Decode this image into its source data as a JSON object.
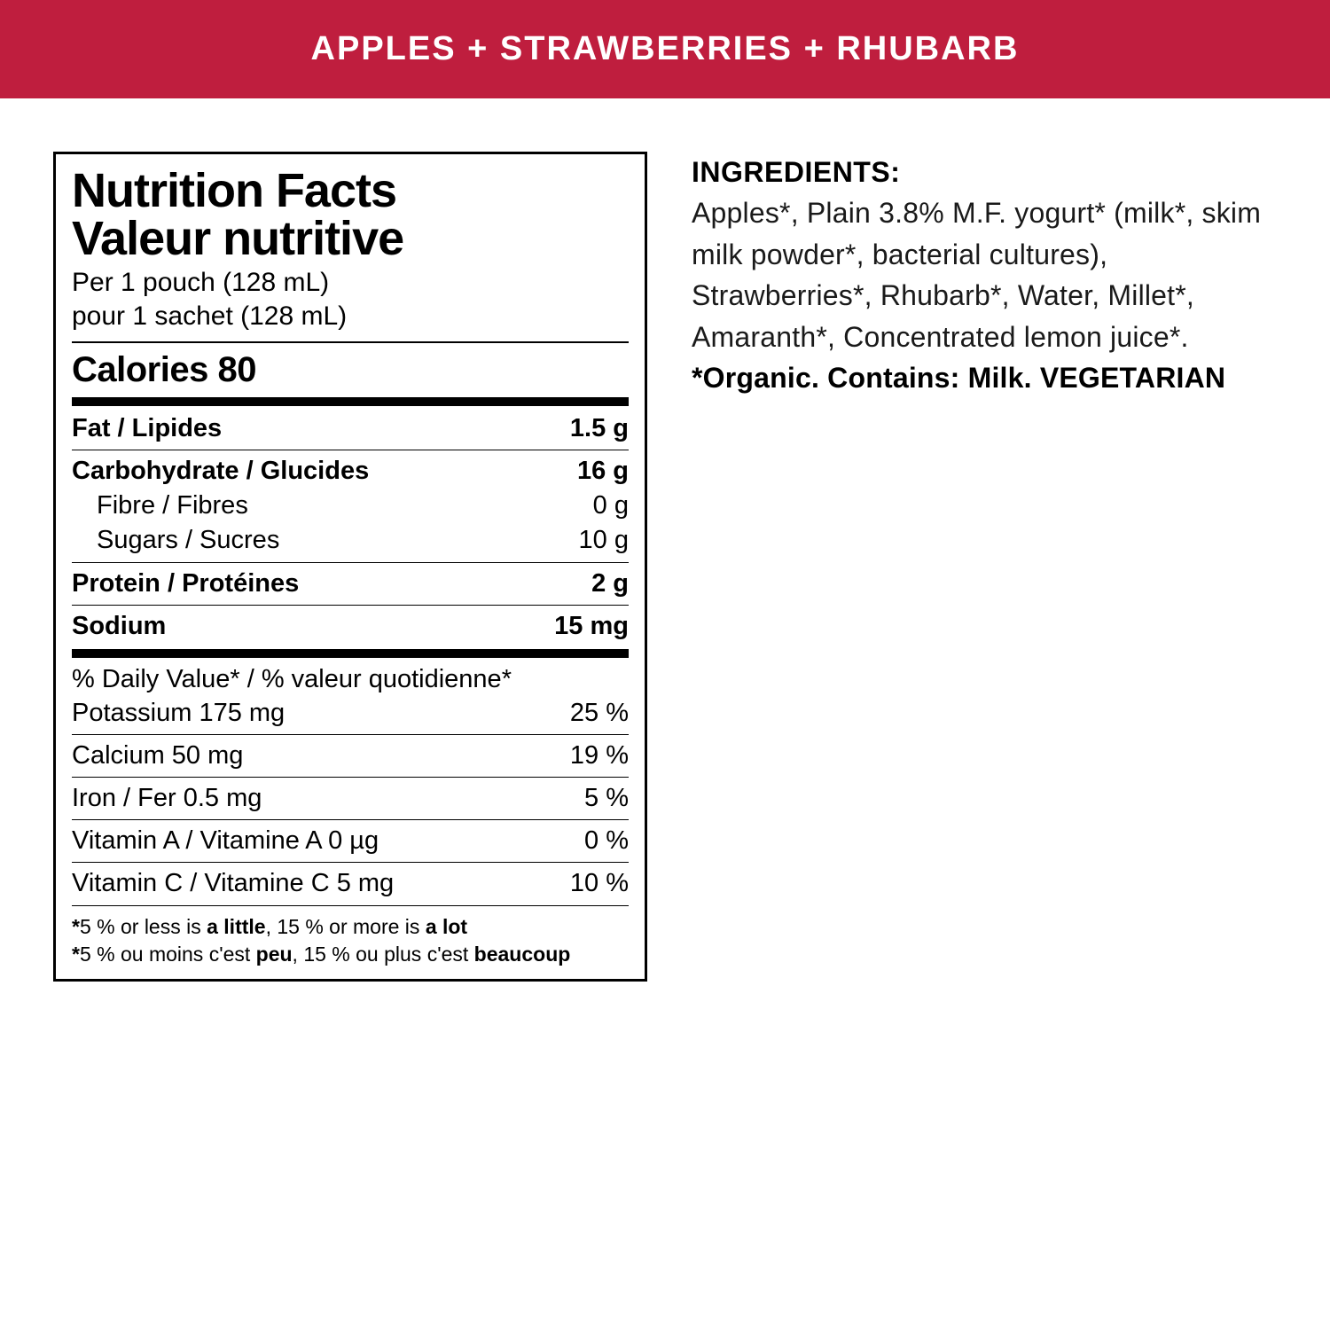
{
  "banner": {
    "text": "APPLES + STRAWBERRIES + RHUBARB",
    "bg": "#bf1e3e",
    "fg": "#ffffff"
  },
  "nutrition": {
    "title_en": "Nutrition Facts",
    "title_fr": "Valeur nutritive",
    "serving_en": "Per 1 pouch (128 mL)",
    "serving_fr": "pour 1 sachet (128 mL)",
    "calories_label": "Calories 80",
    "fat": {
      "label": "Fat / Lipides",
      "value": "1.5 g"
    },
    "carb": {
      "label": "Carbohydrate / Glucides",
      "value": "16 g"
    },
    "fibre": {
      "label": "Fibre / Fibres",
      "value": "0 g"
    },
    "sugars": {
      "label": "Sugars / Sucres",
      "value": "10 g"
    },
    "protein": {
      "label": "Protein / Protéines",
      "value": "2 g"
    },
    "sodium": {
      "label": "Sodium",
      "value": "15 mg"
    },
    "dv_header": "% Daily Value* / % valeur quotidienne*",
    "potassium": {
      "label": "Potassium 175 mg",
      "value": "25 %"
    },
    "calcium": {
      "label": "Calcium 50 mg",
      "value": "19 %"
    },
    "iron": {
      "label": "Iron / Fer 0.5 mg",
      "value": "5 %"
    },
    "vit_a": {
      "label": "Vitamin A / Vitamine A 0 µg",
      "value": "0 %"
    },
    "vit_c": {
      "label": "Vitamin C / Vitamine C 5 mg",
      "value": "10 %"
    },
    "foot_en_pre": "5 % or less is ",
    "foot_en_b1": "a little",
    "foot_en_mid": ", 15 % or more is ",
    "foot_en_b2": "a lot",
    "foot_fr_pre": "5 % ou moins c'est ",
    "foot_fr_b1": "peu",
    "foot_fr_mid": ", 15 % ou plus c'est ",
    "foot_fr_b2": "beaucoup",
    "asterisk": "*"
  },
  "ingredients": {
    "header": "INGREDIENTS:",
    "body": "Apples*, Plain 3.8% M.F. yogurt* (milk*, skim milk powder*, bacterial cultures), Strawberries*, Rhubarb*, Water, Millet*, Amaranth*, Concentrated lemon juice*. ",
    "organic": "*Organic.",
    "contains": "Contains: Milk. VEGETARIAN"
  }
}
